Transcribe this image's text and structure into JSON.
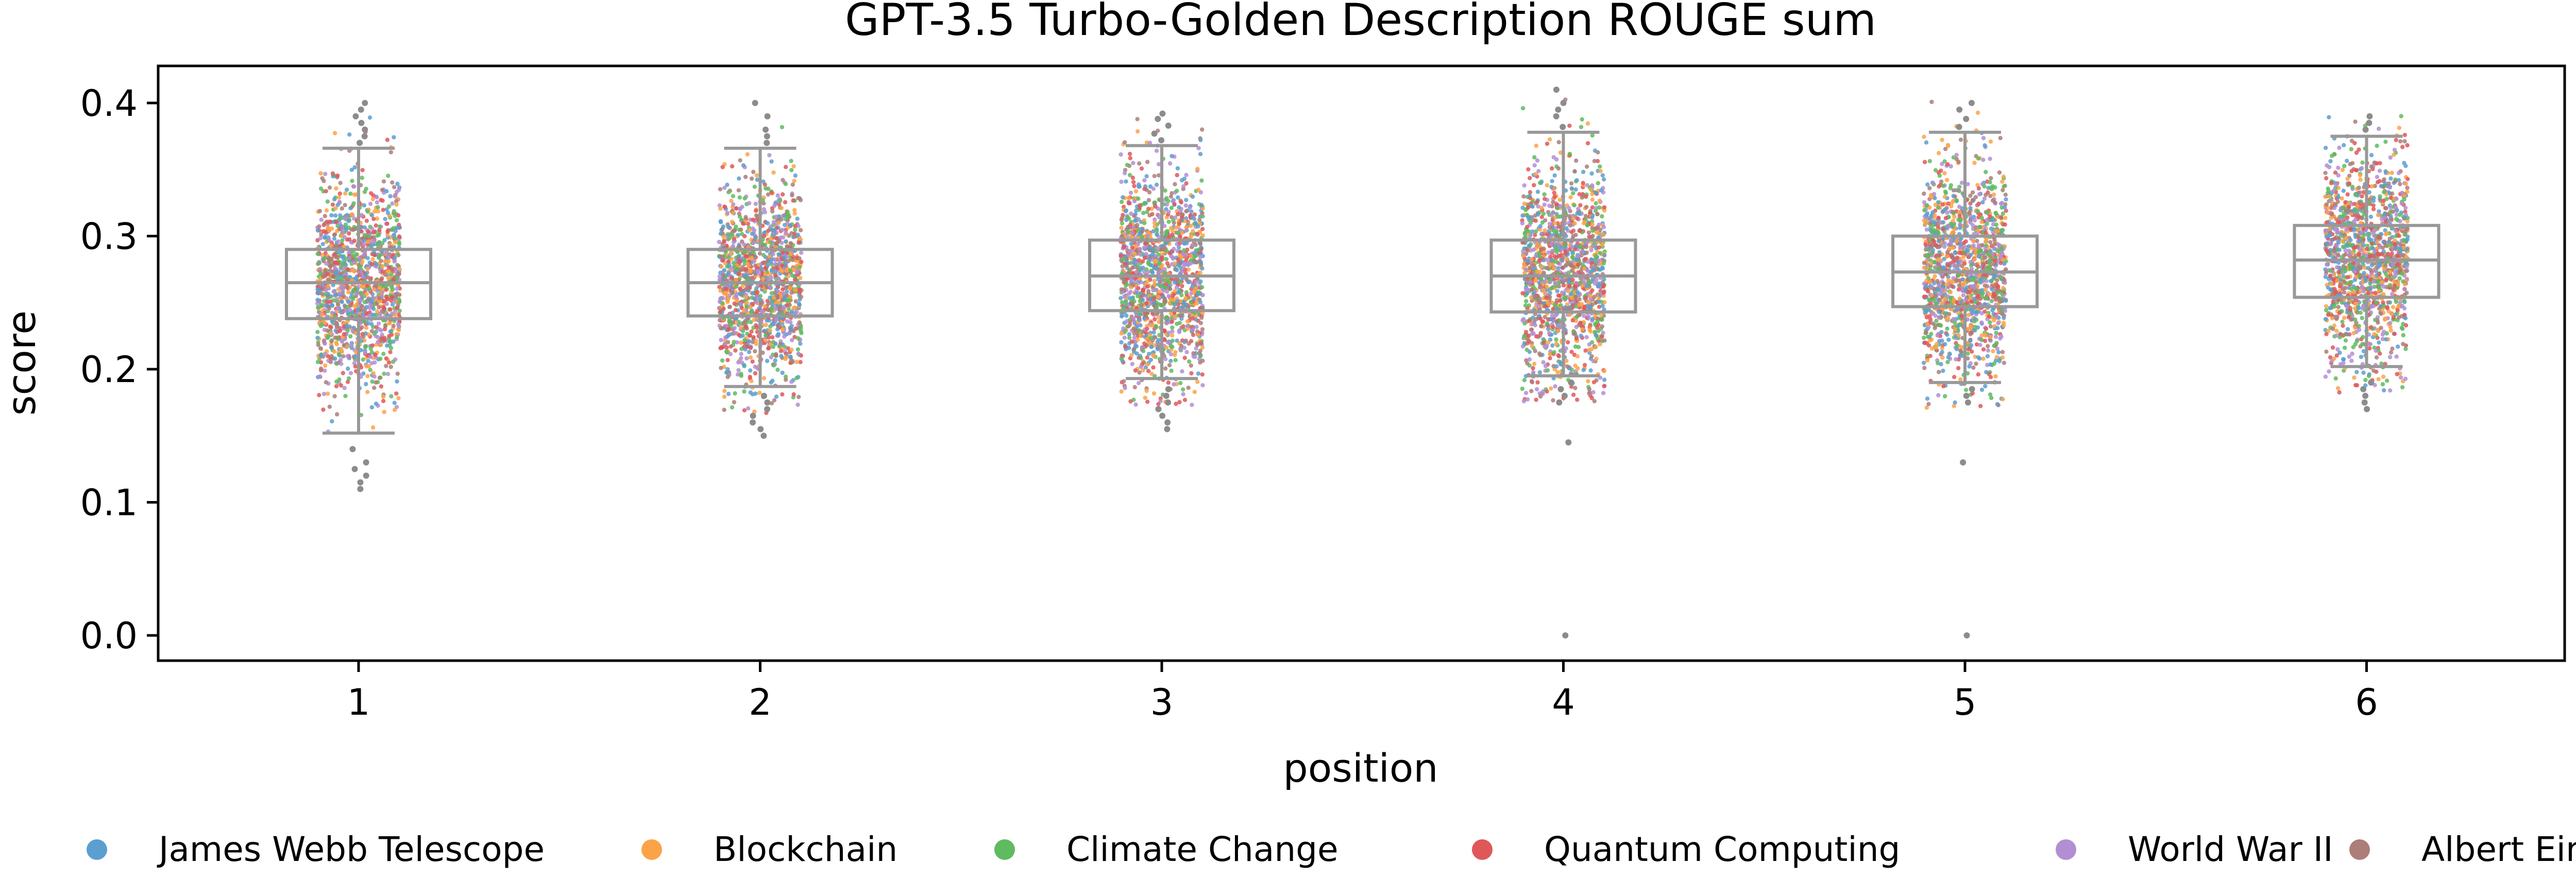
{
  "chart_data": {
    "type": "box-strip",
    "title": "GPT-3.5 Turbo-Golden Description ROUGE sum",
    "xlabel": "position",
    "ylabel": "score",
    "categories": [
      "1",
      "2",
      "3",
      "4",
      "5",
      "6"
    ],
    "ylim": [
      -0.02,
      0.43
    ],
    "yticks": [
      0.0,
      0.1,
      0.2,
      0.3,
      0.4
    ],
    "ytick_labels": [
      "0.0",
      "0.1",
      "0.2",
      "0.3",
      "0.4"
    ],
    "grid": false,
    "legend_position": "bottom",
    "box_color": "#999999",
    "boxes": [
      {
        "position": "1",
        "whisker_low": 0.152,
        "q1": 0.238,
        "median": 0.265,
        "q3": 0.29,
        "whisker_high": 0.366,
        "outliers": [
          0.12,
          0.115,
          0.11,
          0.13,
          0.14,
          0.125,
          0.37,
          0.375,
          0.38,
          0.385,
          0.39,
          0.395,
          0.4
        ]
      },
      {
        "position": "2",
        "whisker_low": 0.187,
        "q1": 0.24,
        "median": 0.265,
        "q3": 0.29,
        "whisker_high": 0.366,
        "outliers": [
          0.15,
          0.155,
          0.16,
          0.165,
          0.17,
          0.175,
          0.18,
          0.37,
          0.375,
          0.38,
          0.39,
          0.4
        ]
      },
      {
        "position": "3",
        "whisker_low": 0.193,
        "q1": 0.244,
        "median": 0.27,
        "q3": 0.297,
        "whisker_high": 0.368,
        "outliers": [
          0.155,
          0.16,
          0.165,
          0.17,
          0.175,
          0.18,
          0.185,
          0.372,
          0.377,
          0.383,
          0.388,
          0.392
        ]
      },
      {
        "position": "4",
        "whisker_low": 0.195,
        "q1": 0.243,
        "median": 0.27,
        "q3": 0.297,
        "whisker_high": 0.378,
        "outliers": [
          0.0,
          0.145,
          0.175,
          0.18,
          0.185,
          0.19,
          0.382,
          0.39,
          0.395,
          0.4,
          0.41
        ]
      },
      {
        "position": "5",
        "whisker_low": 0.19,
        "q1": 0.247,
        "median": 0.273,
        "q3": 0.3,
        "whisker_high": 0.378,
        "outliers": [
          0.0,
          0.13,
          0.175,
          0.18,
          0.185,
          0.382,
          0.388,
          0.395,
          0.4
        ]
      },
      {
        "position": "6",
        "whisker_low": 0.202,
        "q1": 0.254,
        "median": 0.282,
        "q3": 0.308,
        "whisker_high": 0.375,
        "outliers": [
          0.17,
          0.175,
          0.18,
          0.185,
          0.19,
          0.38,
          0.385,
          0.39
        ]
      }
    ],
    "series": [
      {
        "name": "James Webb Telescope",
        "color": "#5a9fd0"
      },
      {
        "name": "Blockchain",
        "color": "#fca348"
      },
      {
        "name": "Climate Change",
        "color": "#5fbb5f"
      },
      {
        "name": "Quantum Computing",
        "color": "#e0575a"
      },
      {
        "name": "World War II",
        "color": "#b28ed3"
      },
      {
        "name": "Albert Einstein",
        "color": "#ad7e77"
      }
    ]
  }
}
